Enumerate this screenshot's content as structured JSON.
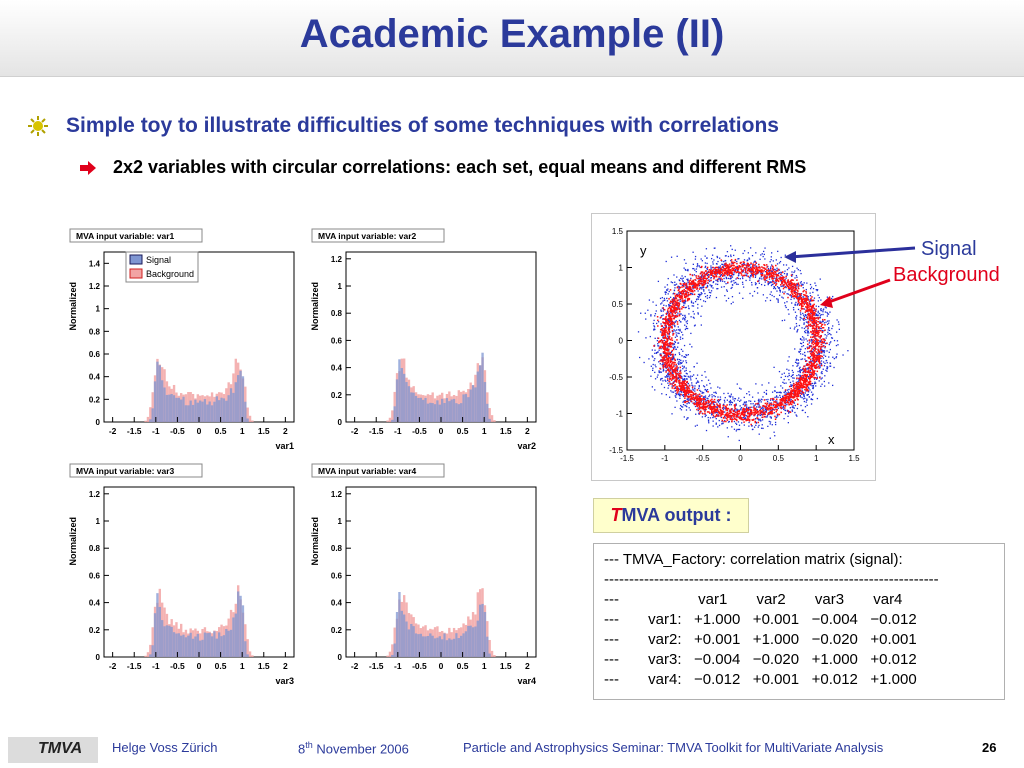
{
  "slide": {
    "title": "Academic Example (II)",
    "bullet1": "Simple toy to illustrate difficulties of some techniques with correlations",
    "bullet2": "2x2 variables with circular correlations: each set, equal means and different  RMS"
  },
  "histograms": [
    {
      "title": "MVA input variable: var1",
      "xlabel": "var1",
      "ylabel": "Normalized",
      "yticks": [
        "0",
        "0.2",
        "0.4",
        "0.6",
        "0.8",
        "1",
        "1.2",
        "1.4"
      ],
      "ymax": 1.5,
      "legend": [
        "Signal",
        "Background"
      ]
    },
    {
      "title": "MVA input variable: var2",
      "xlabel": "var2",
      "ylabel": "Normalized",
      "yticks": [
        "0",
        "0.2",
        "0.4",
        "0.6",
        "0.8",
        "1",
        "1.2"
      ],
      "ymax": 1.25
    },
    {
      "title": "MVA input variable: var3",
      "xlabel": "var3",
      "ylabel": "Normalized",
      "yticks": [
        "0",
        "0.2",
        "0.4",
        "0.6",
        "0.8",
        "1",
        "1.2"
      ],
      "ymax": 1.25
    },
    {
      "title": "MVA input variable: var4",
      "xlabel": "var4",
      "ylabel": "Normalized",
      "yticks": [
        "0",
        "0.2",
        "0.4",
        "0.6",
        "0.8",
        "1",
        "1.2"
      ],
      "ymax": 1.25
    }
  ],
  "hist_xticks": [
    "-2",
    "-1.5",
    "-1",
    "-0.5",
    "0",
    "0.5",
    "1",
    "1.5",
    "2"
  ],
  "scatter": {
    "xticks": [
      "-1.5",
      "-1",
      "-0.5",
      "0",
      "0.5",
      "1",
      "1.5"
    ],
    "yticks": [
      "-1.5",
      "-1",
      "-0.5",
      "0",
      "0.5",
      "1",
      "1.5"
    ],
    "xlabel": "x",
    "ylabel": "y",
    "signal_label": "Signal",
    "background_label": "Background"
  },
  "output": {
    "label_t": "T",
    "label_mva": "MVA",
    "label_rest": " output :",
    "lines": [
      "--- TMVA_Factory: correlation matrix (signal):",
      "-------------------------------------------------------------------",
      "---                   var1       var2       var3       var4",
      "---       var1:   +1.000   +0.001   −0.004   −0.012",
      "---       var2:   +0.001   +1.000   −0.020   +0.001",
      "---       var3:   −0.004   −0.020   +1.000   +0.012",
      "---       var4:   −0.012   +0.001   +0.012   +1.000"
    ]
  },
  "footer": {
    "logo": "TMVA",
    "author": "Helge Voss Zürich",
    "date_day": "8",
    "date_sup": "th",
    "date_rest": " November 2006",
    "seminar": "Particle and Astrophysics Seminar:   TMVA Toolkit for MultiVariate Analysis",
    "page": "26"
  },
  "colors": {
    "title": "#2b3a9b",
    "signal_fill": "#7f96d2",
    "signal_line": "#1a1a5a",
    "background_fill": "#f2a4a4",
    "background_line": "#d02020",
    "scatter_signal": "#1f2fd8",
    "scatter_background": "#ff1010"
  }
}
